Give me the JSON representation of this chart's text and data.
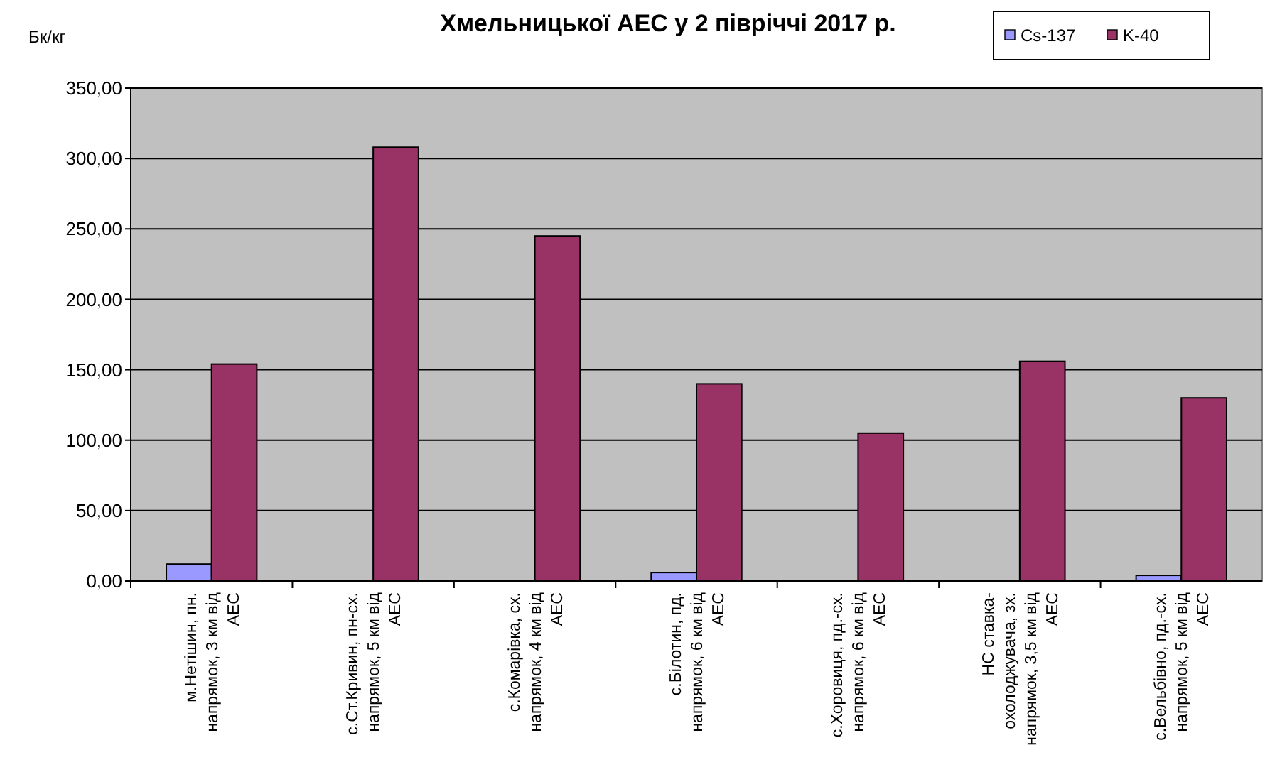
{
  "chart_data": {
    "type": "bar",
    "title": "Хмельницької АЕС у 2 півріччі 2017 р.",
    "ylabel": "Бк/кг",
    "categories": [
      "м.Нетішин, пн. напрямок, 3 км від АЕС",
      "с.Ст.Кривин, пн-сх. напрямок, 5 км від АЕС",
      "с.Комарівка, сх. напрямок, 4 км від АЕС",
      "с.Білотин, пд. напрямок, 6 км від АЕС",
      "с.Хоровиця, пд.-сх. напрямок, 6 км від АЕС",
      "НС ставка-охолоджувача, зх. напрямок, 3,5 км від АЕС",
      "с.Вельбівно, пд.-сх. напрямок, 5 км від АЕС"
    ],
    "series": [
      {
        "name": "Cs-137",
        "color": "#9999ff",
        "values": [
          12,
          null,
          null,
          6,
          null,
          null,
          4
        ]
      },
      {
        "name": "K-40",
        "color": "#993366",
        "values": [
          154,
          308,
          245,
          140,
          105,
          156,
          130
        ]
      }
    ],
    "ylim": [
      0,
      350
    ],
    "yticks": [
      {
        "value": 0,
        "label": "0,00"
      },
      {
        "value": 50,
        "label": "50,00"
      },
      {
        "value": 100,
        "label": "100,00"
      },
      {
        "value": 150,
        "label": "150,00"
      },
      {
        "value": 200,
        "label": "200,00"
      },
      {
        "value": 250,
        "label": "250,00"
      },
      {
        "value": 300,
        "label": "300,00"
      },
      {
        "value": 350,
        "label": "350,00"
      }
    ],
    "grid": "y",
    "legend": "top right"
  }
}
